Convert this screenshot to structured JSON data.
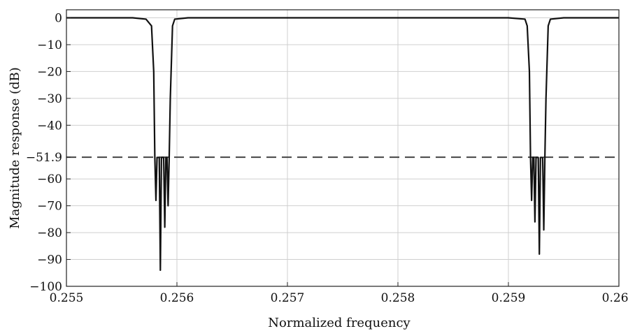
{
  "chart_data": {
    "type": "line",
    "title": "",
    "xlabel": "Normalized frequency",
    "ylabel": "Magnitude response (dB)",
    "xlim": [
      0.255,
      0.26
    ],
    "ylim": [
      -100,
      3
    ],
    "grid": true,
    "x_ticks": [
      "0.255",
      "0.256",
      "0.257",
      "0.258",
      "0.259",
      "0.260"
    ],
    "y_ticks": [
      "0",
      "−10",
      "−20",
      "−30",
      "−40",
      "−51.9",
      "−60",
      "−70",
      "−80",
      "−90",
      "−100"
    ],
    "reference_line": {
      "value": -51.9,
      "style": "dashed"
    },
    "series": [
      {
        "x": [
          0.255,
          0.2553,
          0.2556,
          0.25572,
          0.25577,
          0.25579,
          0.2558,
          0.25581,
          0.25582,
          0.25583,
          0.25584,
          0.25585,
          0.25586,
          0.25587,
          0.25588,
          0.25589,
          0.2559,
          0.25591,
          0.25592,
          0.25593,
          0.25594,
          0.25596,
          0.25598,
          0.2561,
          0.2565,
          0.257,
          0.258,
          0.259,
          0.25915,
          0.25917,
          0.25919,
          0.2592,
          0.25921,
          0.25922,
          0.25923,
          0.25924,
          0.25925,
          0.25926,
          0.25927,
          0.25928,
          0.25929,
          0.2593,
          0.25931,
          0.25932,
          0.25933,
          0.25934,
          0.25936,
          0.25938,
          0.2595,
          0.2598,
          0.26
        ],
        "values": [
          0,
          0,
          0,
          -0.5,
          -3,
          -20,
          -52,
          -68,
          -52,
          -52,
          -52,
          -94,
          -52,
          -52,
          -52,
          -78,
          -52,
          -52,
          -70,
          -52,
          -30,
          -3,
          -0.5,
          0,
          0,
          0,
          0,
          0,
          -0.5,
          -3,
          -20,
          -52,
          -68,
          -52,
          -52,
          -76,
          -52,
          -52,
          -52,
          -88,
          -52,
          -52,
          -52,
          -79,
          -52,
          -30,
          -3,
          -0.5,
          0,
          0,
          0
        ]
      }
    ]
  }
}
